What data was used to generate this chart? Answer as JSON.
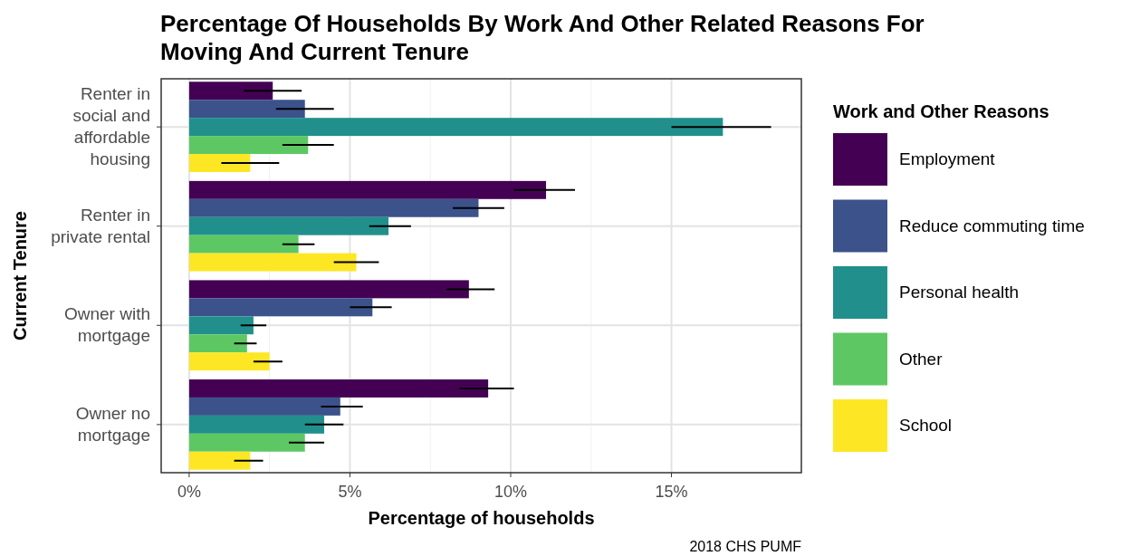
{
  "chart_data": {
    "type": "bar",
    "orientation": "horizontal",
    "title": "Percentage Of Households By Work And Other Related Reasons For Moving And Current Tenure",
    "xlabel": "Percentage of households",
    "ylabel": "Current Tenure",
    "legend_title": "Work and Other Reasons",
    "annotations": [
      "2018 CHS PUMF"
    ],
    "categories": [
      "Renter in social and affordable housing",
      "Renter in private rental",
      "Owner with mortgage",
      "Owner no mortgage"
    ],
    "xlim": [
      -0.87,
      19.04
    ],
    "xticks": [
      {
        "value": 0,
        "label": "0%"
      },
      {
        "value": 5,
        "label": "5%"
      },
      {
        "value": 10,
        "label": "10%"
      },
      {
        "value": 15,
        "label": "15%"
      }
    ],
    "grid": true,
    "legend": "right",
    "series": [
      {
        "name": "Employment",
        "color": "#440154",
        "values": [
          2.6,
          11.1,
          8.7,
          9.3
        ],
        "errors": [
          [
            1.7,
            3.5
          ],
          [
            10.1,
            12.0
          ],
          [
            8.0,
            9.5
          ],
          [
            8.4,
            10.1
          ]
        ]
      },
      {
        "name": "Reduce commuting time",
        "color": "#3b528b",
        "values": [
          3.6,
          9.0,
          5.7,
          4.7
        ],
        "errors": [
          [
            2.7,
            4.5
          ],
          [
            8.2,
            9.8
          ],
          [
            5.0,
            6.3
          ],
          [
            4.1,
            5.4
          ]
        ]
      },
      {
        "name": "Personal health",
        "color": "#21908c",
        "values": [
          16.6,
          6.2,
          2.0,
          4.2
        ],
        "errors": [
          [
            15.0,
            18.1
          ],
          [
            5.6,
            6.9
          ],
          [
            1.6,
            2.4
          ],
          [
            3.6,
            4.8
          ]
        ]
      },
      {
        "name": "Other",
        "color": "#5dc863",
        "values": [
          3.7,
          3.4,
          1.8,
          3.6
        ],
        "errors": [
          [
            2.9,
            4.5
          ],
          [
            2.9,
            3.9
          ],
          [
            1.4,
            2.1
          ],
          [
            3.1,
            4.2
          ]
        ]
      },
      {
        "name": "School",
        "color": "#fde725",
        "values": [
          1.9,
          5.2,
          2.5,
          1.9
        ],
        "errors": [
          [
            1.0,
            2.8
          ],
          [
            4.5,
            5.9
          ],
          [
            2.0,
            2.9
          ],
          [
            1.4,
            2.3
          ]
        ]
      }
    ]
  }
}
